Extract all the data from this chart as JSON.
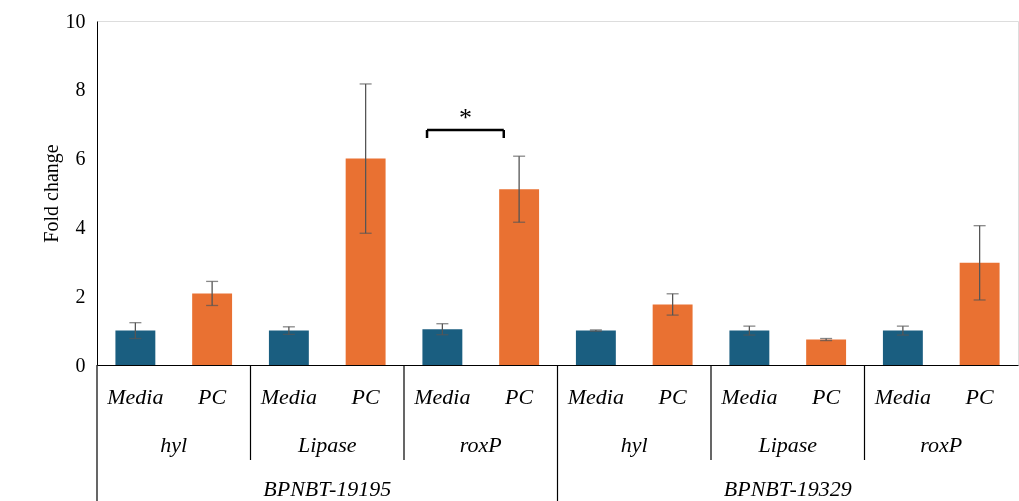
{
  "chart_data": {
    "type": "bar",
    "ylabel": "Fold change",
    "categories": [
      "Media",
      "PC",
      "Media",
      "PC",
      "Media",
      "PC",
      "Media",
      "PC",
      "Media",
      "PC",
      "Media",
      "PC"
    ],
    "values": [
      1.0,
      2.08,
      1.0,
      6.0,
      1.04,
      5.11,
      1.0,
      1.76,
      1.0,
      0.74,
      1.0,
      2.97
    ],
    "errors": [
      0.23,
      0.35,
      0.11,
      2.17,
      0.16,
      0.96,
      0.02,
      0.31,
      0.13,
      0.03,
      0.13,
      1.08
    ],
    "colors": [
      "#1a5e80",
      "#e97132",
      "#1a5e80",
      "#e97132",
      "#1a5e80",
      "#e97132",
      "#1a5e80",
      "#e97132",
      "#1a5e80",
      "#e97132",
      "#1a5e80",
      "#e97132"
    ],
    "ylim": [
      0,
      10
    ],
    "yticks": [
      0,
      2,
      4,
      6,
      8,
      10
    ],
    "grid": false,
    "annotations": [
      "*",
      "hyl",
      "Lipase",
      "roxP",
      "hyl",
      "Lipase",
      "roxP",
      "BPNBT-19195",
      "BPNBT-19329"
    ]
  }
}
